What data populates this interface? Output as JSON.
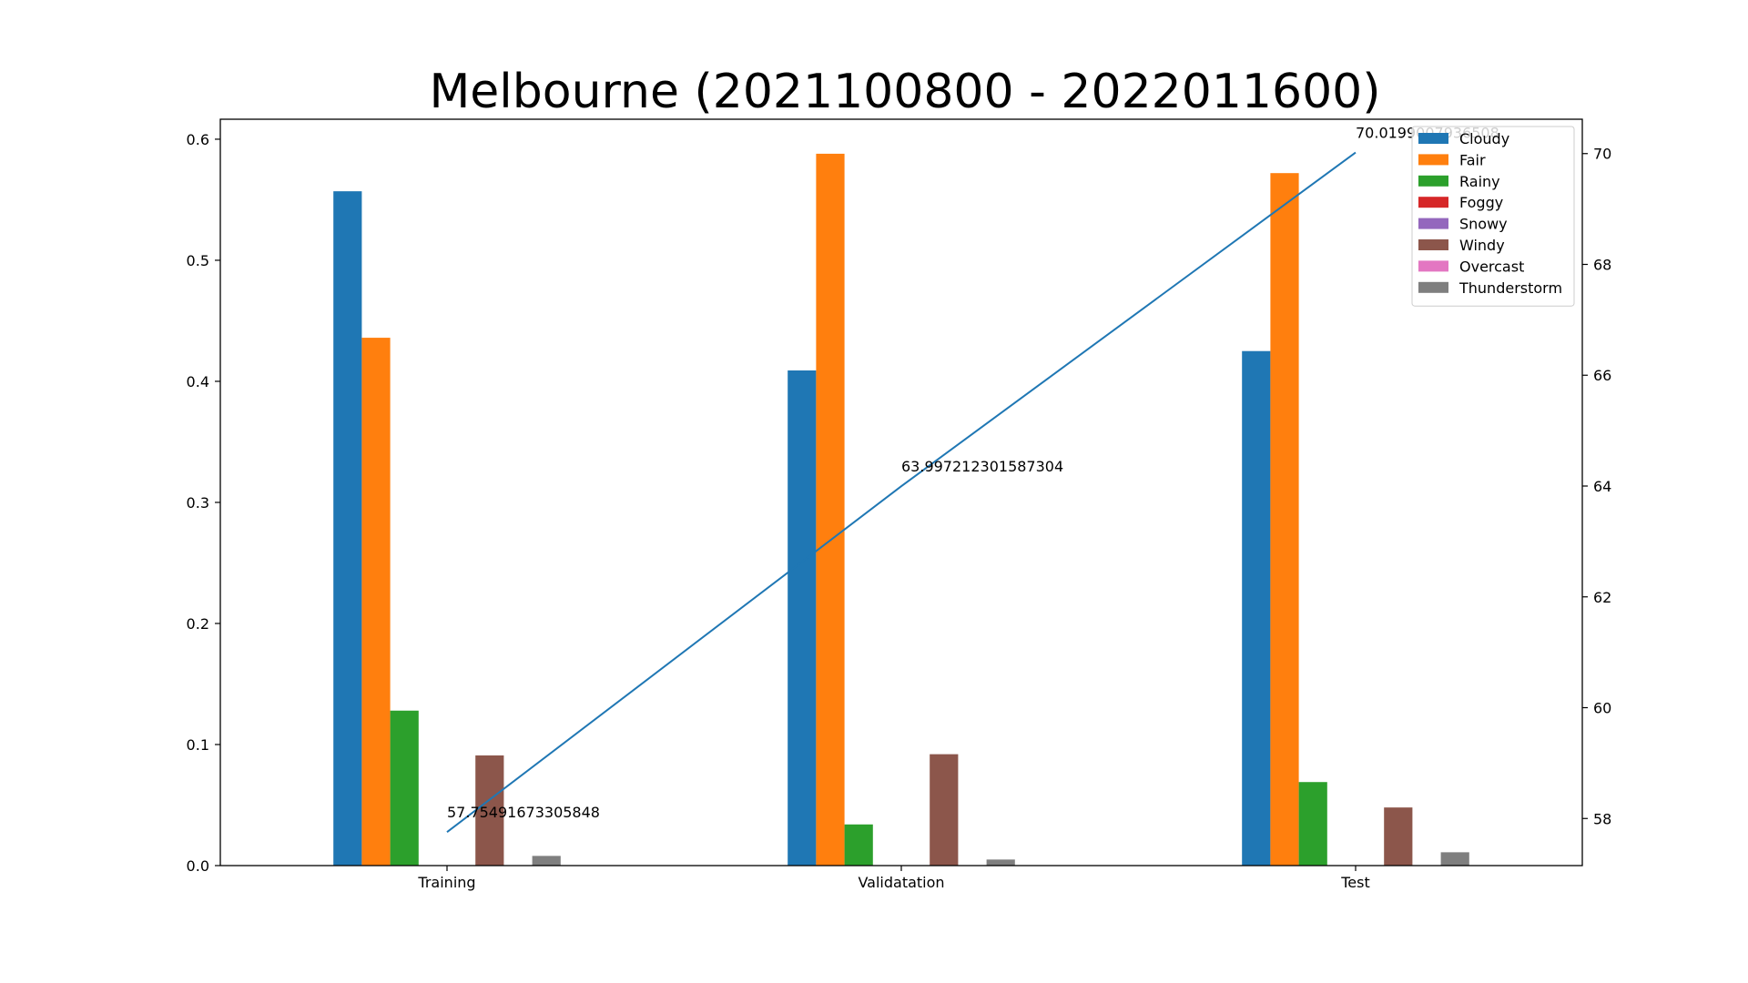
{
  "chart_data": {
    "type": "bar",
    "title": "Melbourne (2021100800 - 2022011600)",
    "categories": [
      "Training",
      "Validatation",
      "Test"
    ],
    "left_axis": {
      "ylim": [
        0,
        0.6165
      ],
      "ticks": [
        "0.0",
        "0.1",
        "0.2",
        "0.3",
        "0.4",
        "0.5",
        "0.6"
      ]
    },
    "right_axis": {
      "ylim": [
        57.15,
        70.62
      ],
      "ticks": [
        "58",
        "60",
        "62",
        "64",
        "66",
        "68",
        "70"
      ]
    },
    "series": [
      {
        "name": "Cloudy",
        "color": "#1f77b4",
        "values": [
          0.557,
          0.409,
          0.425
        ]
      },
      {
        "name": "Fair",
        "color": "#ff7f0e",
        "values": [
          0.436,
          0.588,
          0.572
        ]
      },
      {
        "name": "Rainy",
        "color": "#2ca02c",
        "values": [
          0.128,
          0.034,
          0.069
        ]
      },
      {
        "name": "Foggy",
        "color": "#d62728",
        "values": [
          0,
          0,
          0
        ]
      },
      {
        "name": "Snowy",
        "color": "#9467bd",
        "values": [
          0,
          0,
          0
        ]
      },
      {
        "name": "Windy",
        "color": "#8c564b",
        "values": [
          0.091,
          0.092,
          0.048
        ]
      },
      {
        "name": "Overcast",
        "color": "#e377c2",
        "values": [
          0,
          0,
          0
        ]
      },
      {
        "name": "Thunderstorm",
        "color": "#7f7f7f",
        "values": [
          0.008,
          0.005,
          0.011
        ]
      }
    ],
    "line": {
      "color": "#1f77b4",
      "axis": "right",
      "values": [
        57.75491673305848,
        63.997212301587304,
        70.0199007936508
      ],
      "labels": [
        "57.75491673305848",
        "63.997212301587304",
        "70.0199007936508"
      ]
    },
    "legend": {
      "placement": "upper-right"
    },
    "grid": false
  }
}
